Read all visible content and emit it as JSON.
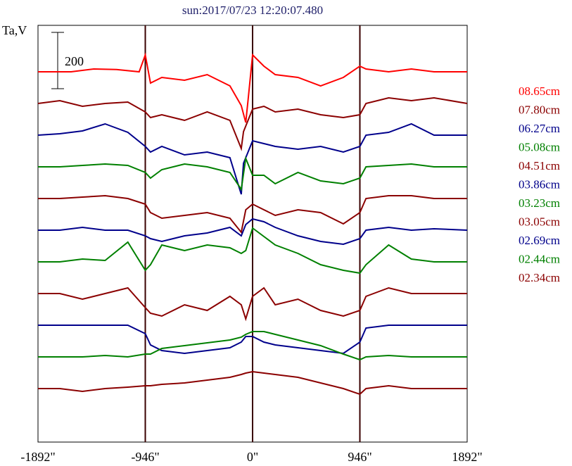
{
  "chart_data": {
    "type": "line",
    "title": "sun:2017/07/23 12:20:07.480",
    "ylabel": "Ta,V",
    "scale_bar_label": "200",
    "xlim": [
      -1892,
      1892
    ],
    "x_ticks": [
      {
        "value": -1892,
        "label": "-1892\""
      },
      {
        "value": -946,
        "label": "-946\""
      },
      {
        "value": 0,
        "label": "0\""
      },
      {
        "value": 946,
        "label": "946\""
      },
      {
        "value": 1892,
        "label": "1892\""
      }
    ],
    "vertical_lines": [
      -946,
      0,
      946
    ],
    "colors": {
      "red": "#ff0000",
      "maroon": "#8b0000",
      "navy": "#00008b",
      "green": "#008000"
    },
    "series": [
      {
        "name": "08.65cm",
        "color": "#ff0000",
        "x": [
          -1892,
          -1600,
          -1400,
          -1200,
          -1000,
          -946,
          -900,
          -800,
          -600,
          -400,
          -200,
          -100,
          -60,
          -40,
          0,
          100,
          200,
          400,
          600,
          800,
          946,
          1000,
          1200,
          1400,
          1600,
          1892
        ],
        "y": [
          0,
          0,
          10,
          8,
          0,
          60,
          -40,
          -20,
          -30,
          -10,
          -50,
          -120,
          -180,
          -100,
          60,
          20,
          -10,
          -20,
          -50,
          -20,
          20,
          10,
          0,
          10,
          0,
          0
        ]
      },
      {
        "name": "07.80cm",
        "color": "#8b0000",
        "x": [
          -1892,
          -1700,
          -1500,
          -1300,
          -1100,
          -946,
          -900,
          -800,
          -600,
          -400,
          -200,
          -100,
          -80,
          0,
          100,
          200,
          400,
          600,
          800,
          946,
          1000,
          1200,
          1400,
          1600,
          1892
        ],
        "y": [
          0,
          10,
          -10,
          0,
          5,
          -30,
          -50,
          -40,
          -60,
          -30,
          -60,
          -160,
          -100,
          -20,
          -10,
          -30,
          -20,
          -40,
          -50,
          -40,
          0,
          20,
          10,
          20,
          0
        ]
      },
      {
        "name": "06.27cm",
        "color": "#00008b",
        "x": [
          -1892,
          -1700,
          -1500,
          -1300,
          -1100,
          -946,
          -900,
          -800,
          -600,
          -400,
          -200,
          -100,
          -80,
          0,
          100,
          200,
          400,
          600,
          800,
          946,
          1000,
          1200,
          1400,
          1600,
          1892
        ],
        "y": [
          0,
          5,
          15,
          40,
          10,
          -40,
          -60,
          -40,
          -70,
          -60,
          -80,
          -210,
          -100,
          -20,
          -30,
          -40,
          -50,
          -40,
          -60,
          -40,
          0,
          10,
          40,
          0,
          0
        ]
      },
      {
        "name": "05.08cm",
        "color": "#008000",
        "x": [
          -1892,
          -1700,
          -1500,
          -1300,
          -1100,
          -946,
          -900,
          -800,
          -600,
          -400,
          -200,
          -100,
          -60,
          0,
          100,
          200,
          400,
          600,
          800,
          946,
          1000,
          1200,
          1400,
          1600,
          1892
        ],
        "y": [
          0,
          0,
          5,
          10,
          5,
          -20,
          -40,
          -10,
          10,
          0,
          -20,
          -80,
          30,
          -30,
          -30,
          -60,
          -20,
          -50,
          -60,
          -40,
          0,
          5,
          10,
          0,
          0
        ]
      },
      {
        "name": "04.51cm",
        "color": "#8b0000",
        "x": [
          -1892,
          -1700,
          -1500,
          -1300,
          -1100,
          -946,
          -900,
          -800,
          -600,
          -400,
          -200,
          -100,
          -60,
          0,
          100,
          200,
          400,
          600,
          800,
          946,
          1000,
          1200,
          1400,
          1600,
          1892
        ],
        "y": [
          0,
          0,
          5,
          10,
          0,
          -20,
          -50,
          -70,
          -60,
          -50,
          -70,
          -120,
          -40,
          -20,
          -40,
          -60,
          -40,
          -50,
          -90,
          -50,
          0,
          10,
          10,
          0,
          0
        ]
      },
      {
        "name": "03.86cm",
        "color": "#00008b",
        "x": [
          -1892,
          -1700,
          -1500,
          -1300,
          -1100,
          -946,
          -900,
          -800,
          -600,
          -400,
          -200,
          -100,
          -60,
          0,
          100,
          200,
          400,
          600,
          800,
          946,
          1000,
          1200,
          1400,
          1600,
          1892
        ],
        "y": [
          0,
          0,
          10,
          0,
          0,
          -20,
          -30,
          -40,
          -20,
          -10,
          10,
          -20,
          20,
          40,
          30,
          10,
          -20,
          -40,
          -50,
          -30,
          0,
          10,
          0,
          5,
          0
        ]
      },
      {
        "name": "03.23cm",
        "color": "#008000",
        "x": [
          -1892,
          -1700,
          -1500,
          -1300,
          -1100,
          -946,
          -900,
          -800,
          -600,
          -400,
          -200,
          -100,
          -60,
          0,
          100,
          200,
          400,
          600,
          800,
          946,
          1000,
          1200,
          1400,
          1600,
          1892
        ],
        "y": [
          0,
          0,
          10,
          5,
          70,
          -30,
          -10,
          60,
          40,
          60,
          50,
          30,
          40,
          120,
          90,
          60,
          30,
          -10,
          -30,
          -40,
          -10,
          60,
          10,
          0,
          0
        ]
      },
      {
        "name": "03.05cm",
        "color": "#8b0000",
        "x": [
          -1892,
          -1700,
          -1500,
          -1300,
          -1100,
          -946,
          -900,
          -800,
          -600,
          -400,
          -200,
          -100,
          -60,
          0,
          100,
          200,
          400,
          600,
          800,
          946,
          1000,
          1200,
          1400,
          1600,
          1892
        ],
        "y": [
          0,
          0,
          -20,
          0,
          20,
          -50,
          -70,
          -80,
          -40,
          -60,
          -10,
          -40,
          -90,
          -10,
          20,
          -40,
          -20,
          -60,
          -80,
          -60,
          -10,
          20,
          0,
          0,
          0
        ]
      },
      {
        "name": "02.69cm",
        "color": "#00008b",
        "x": [
          -1892,
          -1700,
          -1500,
          -1300,
          -1100,
          -946,
          -900,
          -800,
          -600,
          -400,
          -200,
          -100,
          -60,
          0,
          100,
          200,
          400,
          600,
          800,
          946,
          1000,
          1200,
          1400,
          1600,
          1892
        ],
        "y": [
          0,
          0,
          0,
          0,
          0,
          -30,
          -70,
          -90,
          -100,
          -90,
          -80,
          -60,
          -40,
          -40,
          -60,
          -70,
          -80,
          -90,
          -100,
          -60,
          -10,
          0,
          0,
          0,
          0
        ]
      },
      {
        "name": "02.44cm",
        "color": "#008000",
        "x": [
          -1892,
          -1700,
          -1500,
          -1300,
          -1100,
          -946,
          -900,
          -800,
          -600,
          -400,
          -200,
          -100,
          -60,
          0,
          100,
          200,
          400,
          600,
          800,
          946,
          1000,
          1200,
          1400,
          1600,
          1892
        ],
        "y": [
          0,
          0,
          0,
          5,
          0,
          10,
          10,
          30,
          40,
          50,
          60,
          70,
          80,
          90,
          90,
          80,
          60,
          40,
          10,
          -10,
          0,
          5,
          0,
          0,
          0
        ]
      },
      {
        "name": "02.34cm",
        "color": "#8b0000",
        "x": [
          -1892,
          -1700,
          -1500,
          -1300,
          -1100,
          -946,
          -900,
          -800,
          -600,
          -400,
          -200,
          -100,
          -60,
          0,
          100,
          200,
          400,
          600,
          800,
          946,
          1000,
          1200,
          1400,
          1600,
          1892
        ],
        "y": [
          0,
          0,
          -10,
          0,
          5,
          10,
          10,
          15,
          20,
          30,
          40,
          50,
          55,
          60,
          55,
          50,
          40,
          20,
          0,
          -20,
          0,
          10,
          0,
          0,
          0
        ]
      }
    ]
  }
}
